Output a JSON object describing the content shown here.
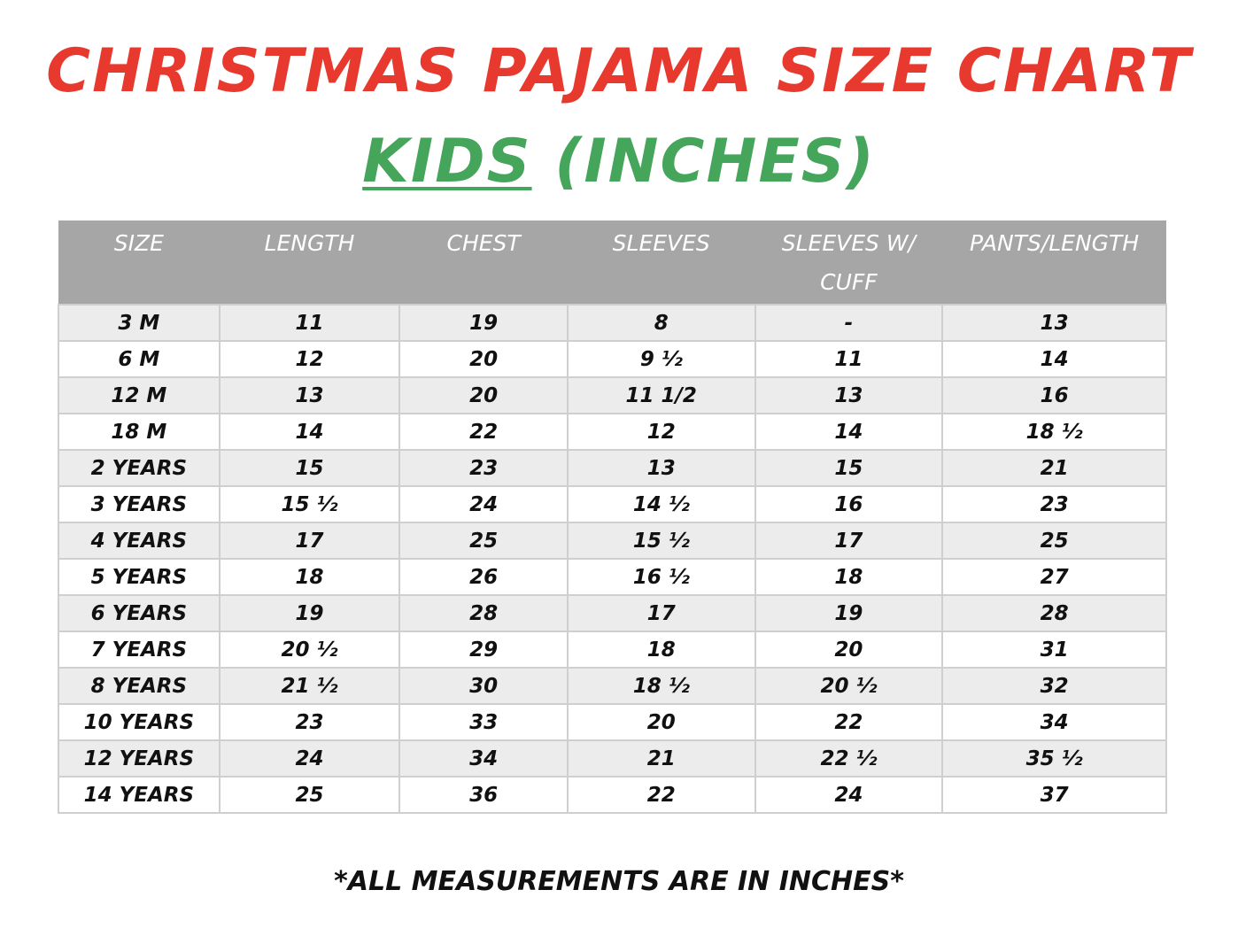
{
  "title": "CHRISTMAS PAJAMA SIZE CHART",
  "subtitle": {
    "kids": "KIDS",
    "units": "(INCHES)"
  },
  "colors": {
    "title": "#e8392f",
    "subtitle": "#45a55a",
    "header_bg": "#a6a6a6",
    "row_alt_bg": "#ececec"
  },
  "table": {
    "headers": [
      "SIZE",
      "LENGTH",
      "CHEST",
      "SLEEVES",
      "SLEEVES W/ CUFF",
      "PANTS/LENGTH"
    ],
    "rows": [
      [
        "3 M",
        "11",
        "19",
        "8",
        "-",
        "13"
      ],
      [
        "6 M",
        "12",
        "20",
        "9 ½",
        "11",
        "14"
      ],
      [
        "12 M",
        "13",
        "20",
        "11 1/2",
        "13",
        "16"
      ],
      [
        "18 M",
        "14",
        "22",
        "12",
        "14",
        "18 ½"
      ],
      [
        "2 YEARS",
        "15",
        "23",
        "13",
        "15",
        "21"
      ],
      [
        "3 YEARS",
        "15 ½",
        "24",
        "14 ½",
        "16",
        "23"
      ],
      [
        "4 YEARS",
        "17",
        "25",
        "15 ½",
        "17",
        "25"
      ],
      [
        "5 YEARS",
        "18",
        "26",
        "16 ½",
        "18",
        "27"
      ],
      [
        "6 YEARS",
        "19",
        "28",
        "17",
        "19",
        "28"
      ],
      [
        "7 YEARS",
        "20 ½",
        "29",
        "18",
        "20",
        "31"
      ],
      [
        "8 YEARS",
        "21 ½",
        "30",
        "18 ½",
        "20 ½",
        "32"
      ],
      [
        "10 YEARS",
        "23",
        "33",
        "20",
        "22",
        "34"
      ],
      [
        "12 YEARS",
        "24",
        "34",
        "21",
        "22 ½",
        "35 ½"
      ],
      [
        "14 YEARS",
        "25",
        "36",
        "22",
        "24",
        "37"
      ]
    ]
  },
  "footer": "*ALL MEASUREMENTS ARE IN INCHES*"
}
